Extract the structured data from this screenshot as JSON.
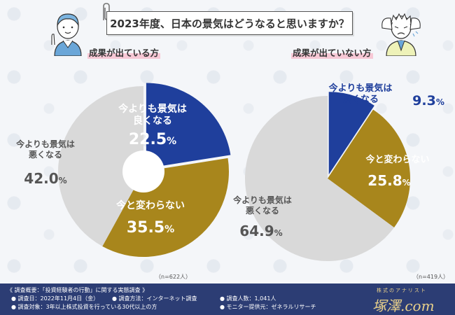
{
  "title": "2023年度、日本の景気はどうなると思いますか？",
  "chart_data": [
    {
      "type": "pie",
      "title": "成果が出ている方",
      "n": "（n=622人）",
      "slices": [
        {
          "line1": "今よりも景気は",
          "line2": "良くなる",
          "num": "22.5",
          "value": 22.5,
          "color": "#1f3f9c",
          "text_color": "#ffffff"
        },
        {
          "line1": "今と変わらない",
          "line2": "",
          "num": "35.5",
          "value": 35.5,
          "color": "#a8861c",
          "text_color": "#ffffff"
        },
        {
          "line1": "今よりも景気は",
          "line2": "悪くなる",
          "num": "42.0",
          "value": 42.0,
          "color": "#d9d9d9",
          "text_color": "#555555"
        }
      ]
    },
    {
      "type": "pie",
      "title": "成果が出ていない方",
      "n": "（n=419人）",
      "slices": [
        {
          "line1": "今よりも景気は",
          "line2": "良くなる",
          "num": "9.3",
          "value": 9.3,
          "color": "#1f3f9c",
          "text_color": "#ffffff"
        },
        {
          "line1": "今と変わらない",
          "line2": "",
          "num": "25.8",
          "value": 25.8,
          "color": "#a8861c",
          "text_color": "#ffffff"
        },
        {
          "line1": "今よりも景気は",
          "line2": "悪くなる",
          "num": "64.9",
          "value": 64.9,
          "color": "#d9d9d9",
          "text_color": "#555555"
        }
      ]
    }
  ],
  "footer": {
    "heading": "《 調査概要：「投資経験者の行動」に関する実態調査 》",
    "date": "● 調査日：2022年11月4日（金）",
    "method": "● 調査方法：インターネット調査",
    "count": "● 調査人数：1,041人",
    "target": "● 調査対象：3年以上株式投資を行っている30代以上の方",
    "provider": "● モニター提供元：ゼネラルリサーチ",
    "brand_small": "株式のアナリスト",
    "brand_big": "塚澤.com"
  }
}
